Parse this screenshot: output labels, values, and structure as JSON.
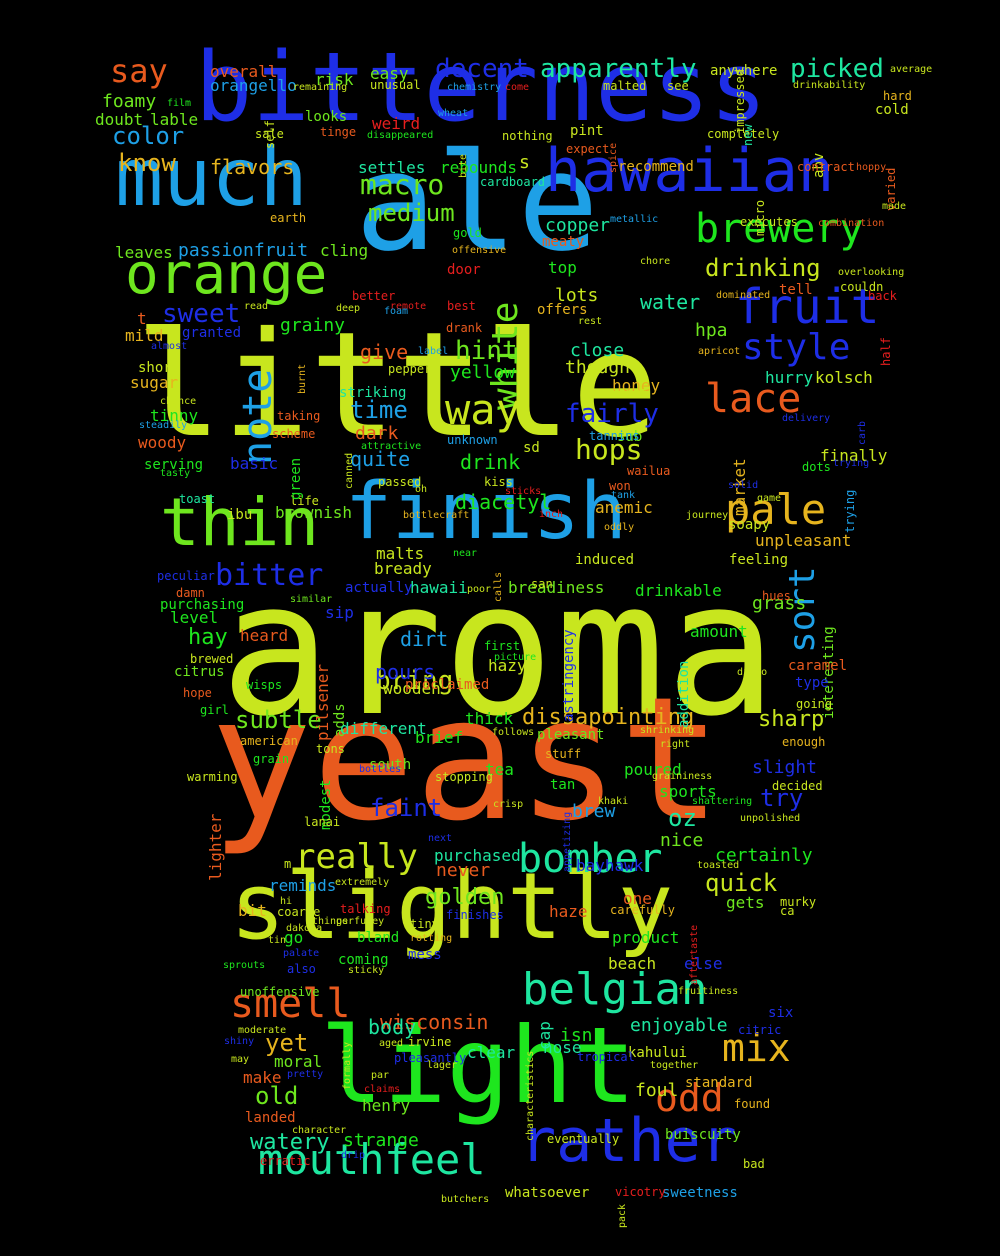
{
  "palette": {
    "yellow": "#c8e61e",
    "orange": "#e85a1e",
    "blue": "#1e2ee6",
    "sky": "#1ea0e6",
    "green": "#1ee61e",
    "teal": "#1ee6a0",
    "lime": "#6ee61e",
    "gold": "#e6b41e",
    "red": "#e61e1e"
  },
  "words": [
    "aroma",
    "yeast",
    "little",
    "ale",
    "slightly",
    "bitterness",
    "light",
    "finish",
    "much",
    "hawaiian",
    "thin",
    "orange",
    "brewery",
    "fruit",
    "rather",
    "bomber",
    "mouthfeel",
    "belgian",
    "smell",
    "mix",
    "odd",
    "pale",
    "style",
    "lace",
    "note",
    "sort",
    "really",
    "white",
    "way",
    "decent",
    "apparently",
    "picked",
    "say",
    "macro",
    "medium",
    "drinking",
    "bitter",
    "sweet",
    "hops",
    "fairly",
    "hint",
    "color",
    "know",
    "flavors",
    "water",
    "time",
    "quite",
    "subtle",
    "bring",
    "dissapointing",
    "sharp",
    "quick",
    "golden",
    "oz",
    "try",
    "faint",
    "old",
    "yet",
    "wisconsin",
    "body",
    "watery",
    "enjoyable",
    "diacetyl",
    "drink",
    "lots",
    "hpa",
    "close",
    "thought",
    "yellow",
    "give",
    "grainy",
    "copper",
    "top",
    "settles",
    "rebounds",
    "hay",
    "pours",
    "dirt",
    "grass",
    "unpleasant",
    "anemic",
    "brownish",
    "hawaii",
    "breadiness",
    "drinkable",
    "level",
    "amount",
    "kolsch",
    "honey",
    "finally",
    "market",
    "hurry",
    "woody",
    "tinny",
    "sugar",
    "short",
    "mild",
    "granted",
    "passionfruit",
    "cling",
    "leaves",
    "foamy",
    "lable",
    "doubt",
    "overall",
    "orangello",
    "risk",
    "easy",
    "looks",
    "unusual",
    "weird",
    "meaty",
    "offers",
    "recommend",
    "pint",
    "nothing",
    "tinge",
    "completely",
    "abv",
    "cold",
    "hard",
    "varied",
    "contract",
    "executes",
    "micro",
    "new",
    "anywhere",
    "see",
    "malted",
    "sip",
    "heard",
    "pilsener",
    "adds",
    "hazy",
    "wooden",
    "proclaimed",
    "first",
    "picture",
    "astringency",
    "addition",
    "interesting",
    "caramel",
    "type",
    "going",
    "enough",
    "slight",
    "decided",
    "unpolished",
    "certainly",
    "nice",
    "never",
    "purchased",
    "reminds",
    "gets",
    "murky",
    "one",
    "haze",
    "carefully",
    "product",
    "beach",
    "else",
    "six",
    "citric",
    "cap",
    "isn",
    "nose",
    "clear",
    "kahului",
    "foul",
    "standard",
    "found",
    "buiscuity",
    "bad",
    "sweetness",
    "whatsoever",
    "vicotry",
    "strange",
    "henry",
    "make",
    "moral",
    "landed",
    "erratic",
    "unoffensive",
    "moderate",
    "coming",
    "bland",
    "mess",
    "tiny",
    "rotting",
    "go",
    "bit",
    "talking",
    "coarse",
    "dakota",
    "tea",
    "brew",
    "tan",
    "sports",
    "poured",
    "crisp",
    "modest",
    "south",
    "stopping",
    "lighter",
    "grain",
    "american",
    "tons",
    "brief",
    "thick",
    "different",
    "pleasant",
    "stuff",
    "shrinking",
    "right",
    "follows",
    "warming",
    "girl",
    "hope",
    "citrus",
    "brewed",
    "wisps",
    "malts",
    "bready",
    "near",
    "poor",
    "calls",
    "inch",
    "oddly",
    "induced",
    "journey",
    "feeling",
    "hues",
    "actually",
    "purchasing",
    "similar",
    "damn",
    "peculiar",
    "toast",
    "ibu",
    "life",
    "passed",
    "kiss",
    "sticks",
    "won",
    "tank",
    "solid",
    "game",
    "soapy",
    "trying",
    "dots",
    "wailua",
    "sub",
    "tannins",
    "unknown",
    "canned",
    "attractive",
    "scheme",
    "taking",
    "chance",
    "steadily",
    "serving",
    "tasty",
    "basic",
    "dark",
    "green",
    "striking",
    "pepper",
    "label",
    "ensues",
    "burnt",
    "apricot",
    "delivery",
    "carb",
    "half",
    "back",
    "dominated",
    "tell",
    "overlooking",
    "couldn",
    "chore",
    "rest",
    "drank",
    "remote",
    "best",
    "foam",
    "deep",
    "read",
    "better",
    "door",
    "offensive",
    "gold",
    "metallic",
    "combination",
    "made",
    "hoppy",
    "spice",
    "expect",
    "bite",
    "chemistry",
    "wheat",
    "disappeared",
    "sale",
    "self",
    "remaining",
    "film",
    "come",
    "impressed",
    "drinkability",
    "average",
    "earth",
    "cardboard",
    "s",
    "t",
    "almost",
    "sd",
    "oh",
    "bottlecraft",
    "toasted",
    "trying",
    "lanai",
    "next",
    "appetizing",
    "khaki",
    "graininess",
    "shattering",
    "bayhawk",
    "extremely",
    "m",
    "bottles",
    "sprouts",
    "also",
    "palate",
    "hi",
    "things",
    "perfumey",
    "finishes",
    "sticky",
    "formally",
    "aged",
    "irvine",
    "pleasantly",
    "tropical",
    "fruitiness",
    "aftertaste",
    "lager",
    "together",
    "par",
    "claims",
    "shiny",
    "may",
    "pretty",
    "character",
    "drip",
    "eventually",
    "characteristics",
    "butchers",
    "pack",
    "diego",
    "ca",
    "tin",
    "san"
  ]
}
